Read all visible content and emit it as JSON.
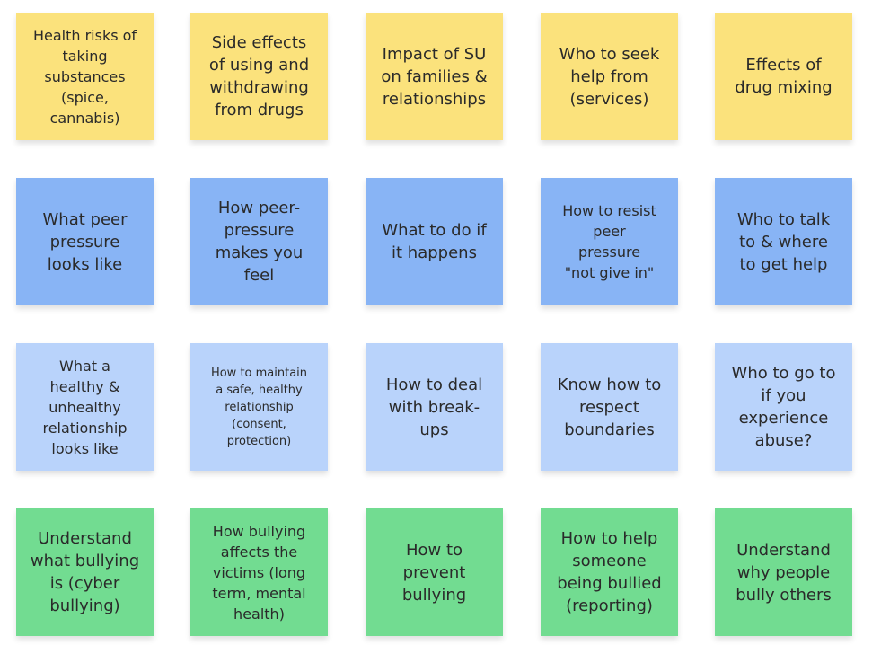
{
  "colors": {
    "yellow": "#fbe27c",
    "blue": "#88b4f5",
    "light_blue": "#b9d3fb",
    "green": "#72dc91"
  },
  "rows": [
    {
      "color": "yellow",
      "notes": [
        "Health risks of\ntaking\nsubstances\n(spice,\ncannabis)",
        "Side effects\nof using and\nwithdrawing\nfrom drugs",
        "Impact of SU\non families &\nrelationships",
        "Who to seek\nhelp from\n(services)",
        "Effects of\ndrug mixing"
      ]
    },
    {
      "color": "blue",
      "notes": [
        "What peer\npressure\nlooks like",
        "How peer-\npressure\nmakes you\nfeel",
        "What to do if\nit happens",
        "How to resist\npeer\npressure\n\"not give in\"",
        "Who to talk\nto & where\nto get help"
      ]
    },
    {
      "color": "light_blue",
      "notes": [
        "What a\nhealthy &\nunhealthy\nrelationship\nlooks like",
        "How to maintain\na safe, healthy\nrelationship\n(consent,\nprotection)",
        "How to deal\nwith break-\nups",
        "Know how to\nrespect\nboundaries",
        "Who to go to\nif you\nexperience\nabuse?"
      ]
    },
    {
      "color": "green",
      "notes": [
        "Understand\nwhat bullying\nis (cyber\nbullying)",
        "How bullying\naffects the\nvictims (long\nterm, mental\nhealth)",
        "How to\nprevent\nbullying",
        "How to help\nsomeone\nbeing bullied\n(reporting)",
        "Understand\nwhy people\nbully others"
      ]
    }
  ]
}
